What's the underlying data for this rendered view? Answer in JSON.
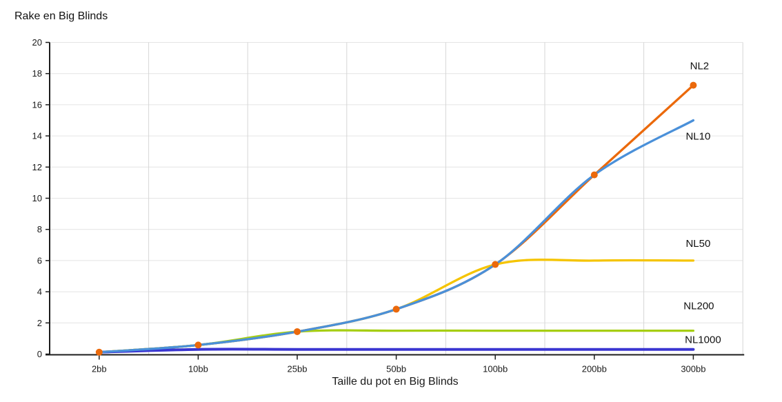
{
  "page": {
    "background_color": "#ffffff",
    "text_color": "#111111"
  },
  "chart_data": {
    "type": "line",
    "title": "Rake en Big Blinds",
    "xlabel": "Taille du pot en Big Blinds",
    "ylabel": "",
    "categories": [
      "2bb",
      "10bb",
      "25bb",
      "50bb",
      "100bb",
      "200bb",
      "300bb"
    ],
    "ylim": [
      0,
      20
    ],
    "ytick_step": 2,
    "ytick_labels": [
      "0",
      "2",
      "4",
      "6",
      "8",
      "10",
      "12",
      "14",
      "16",
      "18",
      "20"
    ],
    "grid": "light gray horizontal and vertical gridlines",
    "legend_position": "labels at right end of each line",
    "curve": "smooth",
    "axis_color": "#1c1c1c",
    "hgrid_color": "#e4e4e4",
    "vgrid_color": "#d6d6d6",
    "series": [
      {
        "name": "NL2",
        "color": "#EB690B",
        "point_markers": true,
        "values": [
          0.12,
          0.58,
          1.44,
          2.88,
          5.75,
          11.5,
          17.25
        ]
      },
      {
        "name": "NL10",
        "color": "#4A90D9",
        "point_markers": false,
        "values": [
          0.12,
          0.58,
          1.44,
          2.88,
          5.75,
          11.5,
          15
        ]
      },
      {
        "name": "NL50",
        "color": "#F5C400",
        "point_markers": false,
        "values": [
          0.12,
          0.58,
          1.44,
          2.88,
          5.75,
          6,
          6
        ]
      },
      {
        "name": "NL200",
        "color": "#A6CE13",
        "point_markers": false,
        "values": [
          0.12,
          0.58,
          1.44,
          1.5,
          1.5,
          1.5,
          1.5
        ]
      },
      {
        "name": "NL1000",
        "color": "#3A35D1",
        "point_markers": false,
        "values": [
          0.12,
          0.3,
          0.3,
          0.3,
          0.3,
          0.3,
          0.3
        ]
      }
    ]
  }
}
